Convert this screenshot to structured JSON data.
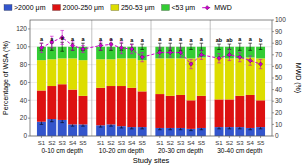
{
  "chart_data": {
    "type": "bar",
    "stacked": true,
    "grid": true,
    "legend": "upper left",
    "x_label": "Study sites",
    "y_label": "Percentage of WSA (%)",
    "y2_label": "MWD (%)",
    "groups": [
      "0-10 cm depth",
      "10-20 cm depth",
      "20-30 cm depth",
      "30-40 cm depth"
    ],
    "categories": [
      "S1",
      "S2",
      "S3",
      "S4",
      "S5",
      "S1",
      "S2",
      "S3",
      "S4",
      "S5",
      "S1",
      "S2",
      "S3",
      "S4",
      "S5",
      "S1",
      "S2",
      "S3",
      "S4",
      "S5"
    ],
    "ylim": [
      0,
      130
    ],
    "yticks": [
      0,
      20,
      40,
      60,
      80,
      100,
      120
    ],
    "y2lim": [
      0,
      100
    ],
    "y2ticks": [
      0,
      10,
      20,
      30,
      40,
      50,
      60,
      70,
      80,
      90,
      100
    ],
    "series": [
      {
        "name": ">2000 μm",
        "color": "#3355CC",
        "type": "bar",
        "values": [
          16,
          19,
          18,
          13,
          13,
          12,
          13,
          11,
          10,
          10,
          9,
          9,
          9,
          8,
          9,
          10,
          10,
          10,
          9,
          10
        ],
        "error": [
          3,
          3,
          3,
          2,
          2,
          2,
          2,
          2,
          2,
          2,
          2,
          2,
          2,
          2,
          2,
          2,
          2,
          2,
          2,
          2
        ]
      },
      {
        "name": "2000-250 μm",
        "color": "#DD1111",
        "type": "bar",
        "values": [
          35,
          37,
          40,
          39,
          32,
          42,
          43,
          45,
          44,
          40,
          38,
          36,
          37,
          32,
          36,
          31,
          31,
          35,
          37,
          30
        ]
      },
      {
        "name": "250-53 μm",
        "color": "#DDDD00",
        "type": "bar",
        "values": [
          34,
          30,
          29,
          35,
          40,
          32,
          30,
          31,
          33,
          35,
          40,
          42,
          41,
          47,
          43,
          47,
          46,
          42,
          42,
          47
        ]
      },
      {
        "name": "<53 μm",
        "color": "#33CC33",
        "type": "bar",
        "values": [
          15,
          14,
          13,
          13,
          15,
          14,
          14,
          13,
          13,
          15,
          13,
          13,
          13,
          13,
          12,
          12,
          13,
          13,
          12,
          13
        ]
      },
      {
        "name": "MWD",
        "color": "#CC00CC",
        "type": "line",
        "axis": "y2",
        "marker": "diamond",
        "line_style": "dashed",
        "values": [
          76,
          81,
          85,
          78,
          75,
          78,
          79,
          76,
          75,
          68,
          72,
          72,
          72,
          62,
          70,
          67,
          70,
          68,
          65,
          62
        ],
        "error": [
          4,
          5,
          6,
          4,
          3,
          4,
          4,
          5,
          4,
          4,
          4,
          4,
          4,
          4,
          4,
          4,
          5,
          4,
          4,
          4
        ]
      }
    ],
    "total_error": [
      4,
      4,
      5,
      4,
      4,
      4,
      4,
      4,
      3,
      3,
      4,
      4,
      4,
      3,
      4,
      3,
      3,
      4,
      4,
      3
    ],
    "annotations": [
      "a",
      "a",
      "a",
      "a",
      "a",
      "a",
      "a",
      "a",
      "a",
      "a",
      "a",
      "a",
      "a",
      "a",
      "a",
      "ab",
      "ab",
      "a",
      "a",
      "b"
    ]
  }
}
